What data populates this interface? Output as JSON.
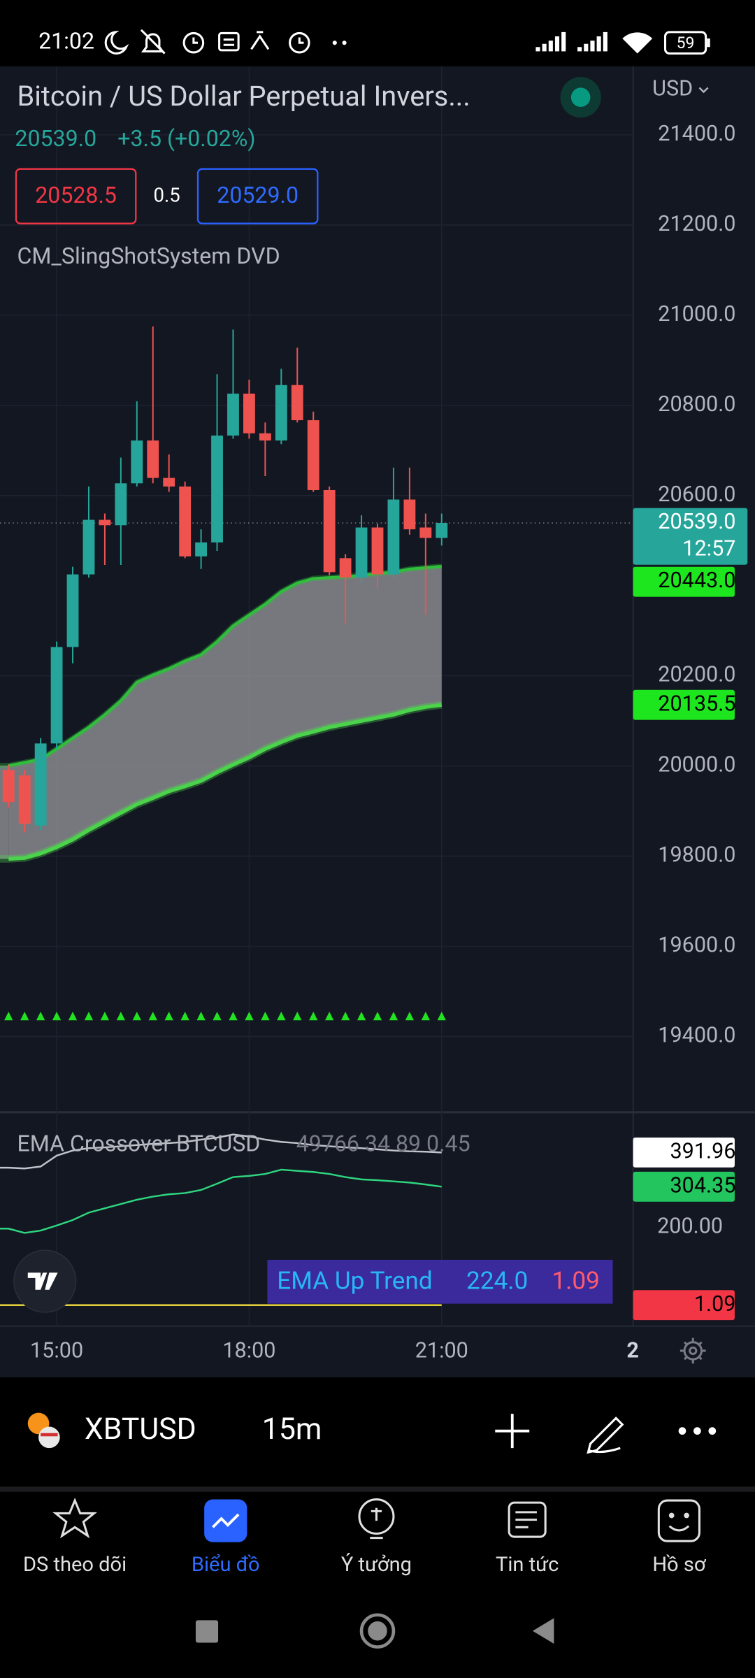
{
  "status_bar": {
    "time": "21:02",
    "battery": "59"
  },
  "header": {
    "title": "Bitcoin / US Dollar Perpetual Invers...",
    "price": "20539.0",
    "change": "+3.5 (+0.02%)",
    "bid": "20528.5",
    "spread": "0.5",
    "ask": "20529.0",
    "indicator": "CM_SlingShotSystem DVD",
    "currency": "USD"
  },
  "chart_data": [
    {
      "type": "candlestick",
      "categories": [
        null,
        null,
        null,
        "15:00",
        null,
        null,
        null,
        null,
        null,
        null,
        null,
        null,
        null,
        null,
        null,
        "18:00",
        null,
        null,
        null,
        null,
        null,
        null,
        null,
        null,
        null,
        null,
        null,
        "21:00"
      ],
      "open": [
        19991,
        19979,
        19868,
        20050,
        20264,
        20425,
        20546,
        20534,
        20627,
        20722,
        20639,
        20620,
        20465,
        20496,
        20733,
        20826,
        20738,
        20722,
        20845,
        20767,
        20612,
        20461,
        20418,
        20529,
        20425,
        20591,
        20529,
        20506
      ],
      "high": [
        20003,
        19991,
        20062,
        20276,
        20442,
        20620,
        20560,
        20684,
        20809,
        20975,
        20691,
        20631,
        20525,
        20869,
        20968,
        20857,
        20762,
        20881,
        20928,
        20786,
        20620,
        20470,
        20556,
        20537,
        20662,
        20662,
        20560,
        20560
      ],
      "low": [
        19908,
        19853,
        19858,
        20038,
        20228,
        20418,
        20446,
        20446,
        20620,
        20627,
        20608,
        20461,
        20437,
        20477,
        20726,
        20726,
        20643,
        20714,
        20762,
        20608,
        20423,
        20316,
        20406,
        20394,
        20418,
        20513,
        20335,
        20489
      ],
      "close": [
        19920,
        19872,
        20050,
        20264,
        20425,
        20546,
        20534,
        20627,
        20722,
        20639,
        20620,
        20465,
        20496,
        20733,
        20826,
        20738,
        20722,
        20845,
        20767,
        20612,
        20430,
        20418,
        20529,
        20425,
        20591,
        20525,
        20506,
        20539
      ],
      "up_color": "#26a69a",
      "down_color": "#ef5350",
      "overlays": [
        {
          "color": "#2fbf3a",
          "values": [
            20001,
            20008,
            20015,
            20038,
            20062,
            20086,
            20114,
            20145,
            20186,
            20202,
            20216,
            20233,
            20247,
            20276,
            20311,
            20335,
            20359,
            20387,
            20406,
            20416,
            20418,
            20420,
            20423,
            20427,
            20430,
            20437,
            20440,
            20443
          ]
        },
        {
          "color": "#4cd34c",
          "values": [
            19794,
            19796,
            19806,
            19820,
            19837,
            19858,
            19877,
            19896,
            19915,
            19929,
            19944,
            19955,
            19967,
            19986,
            20003,
            20019,
            20038,
            20053,
            20067,
            20076,
            20086,
            20093,
            20100,
            20107,
            20114,
            20124,
            20131,
            20135.5
          ]
        }
      ],
      "band_fill": "#8a8a8e",
      "signal_color": "#22e322",
      "ylim": [
        19232,
        21552
      ],
      "yticks": [
        {
          "value": 21400,
          "label": "21400.0"
        },
        {
          "value": 21200,
          "label": "21200.0"
        },
        {
          "value": 21000,
          "label": "21000.0"
        },
        {
          "value": 20800,
          "label": "20800.0"
        },
        {
          "value": 20600,
          "label": "20600.0"
        },
        {
          "value": 20200,
          "label": "20200.0"
        },
        {
          "value": 20000,
          "label": "20000.0"
        },
        {
          "value": 19800,
          "label": "19800.0"
        },
        {
          "value": 19600,
          "label": "19600.0"
        },
        {
          "value": 19400,
          "label": "19400.0"
        }
      ],
      "grid": true,
      "price_tags": [
        {
          "value": 20539,
          "label": "20539.0",
          "sub": "12:57",
          "color": "#26a69a"
        },
        {
          "value": 20443,
          "label": "20443.0",
          "color": "#1ee61e"
        },
        {
          "value": 20135.5,
          "label": "20135.5",
          "color": "#1ee61e"
        }
      ],
      "partial_x_label": "2"
    },
    {
      "type": "line",
      "title": "EMA Crossover BTCUSD",
      "params": "49766 34 89 0.45",
      "series": [
        {
          "color": "#c3c5cc",
          "values": [
            353,
            351,
            356,
            384,
            397,
            403,
            405,
            408,
            411,
            414,
            416,
            419,
            425,
            430,
            438,
            433,
            425,
            419,
            416,
            411,
            408,
            405,
            403,
            400,
            397,
            395,
            394,
            391.96
          ]
        },
        {
          "color": "#2ed67f",
          "values": [
            197,
            186,
            192,
            205,
            219,
            238,
            249,
            260,
            271,
            279,
            285,
            288,
            296,
            312,
            329,
            332,
            337,
            348,
            345,
            342,
            337,
            329,
            323,
            321,
            318,
            315,
            310,
            304.35
          ]
        },
        {
          "color": "#f5e23c",
          "values": [
            1.09,
            1.09,
            1.09,
            1.09,
            1.09,
            1.09,
            1.09,
            1.09,
            1.09,
            1.09,
            1.09,
            1.09,
            1.09,
            1.09,
            1.09,
            1.09,
            1.09,
            1.09,
            1.09,
            1.09,
            1.09,
            1.09,
            1.09,
            1.09,
            1.09,
            1.09,
            1.09,
            1.09
          ]
        }
      ],
      "ylim": [
        -50,
        495
      ],
      "yticks": [
        {
          "value": 200,
          "label": "200.00"
        }
      ],
      "price_tags": [
        {
          "value": 391.96,
          "label": "391.96",
          "color": "#ffffff"
        },
        {
          "value": 304.35,
          "label": "304.35",
          "color": "#22c55e"
        },
        {
          "value": 1.09,
          "label": "1.09",
          "color": "#f23645"
        }
      ],
      "status_box": {
        "label": "EMA Up Trend",
        "value": "224.0",
        "value2": "1.09"
      }
    }
  ],
  "toolbar": {
    "symbol": "XBTUSD",
    "interval": "15m"
  },
  "nav": [
    "DS theo dõi",
    "Biểu đồ",
    "Ý tưởng",
    "Tin tức",
    "Hồ sơ"
  ]
}
